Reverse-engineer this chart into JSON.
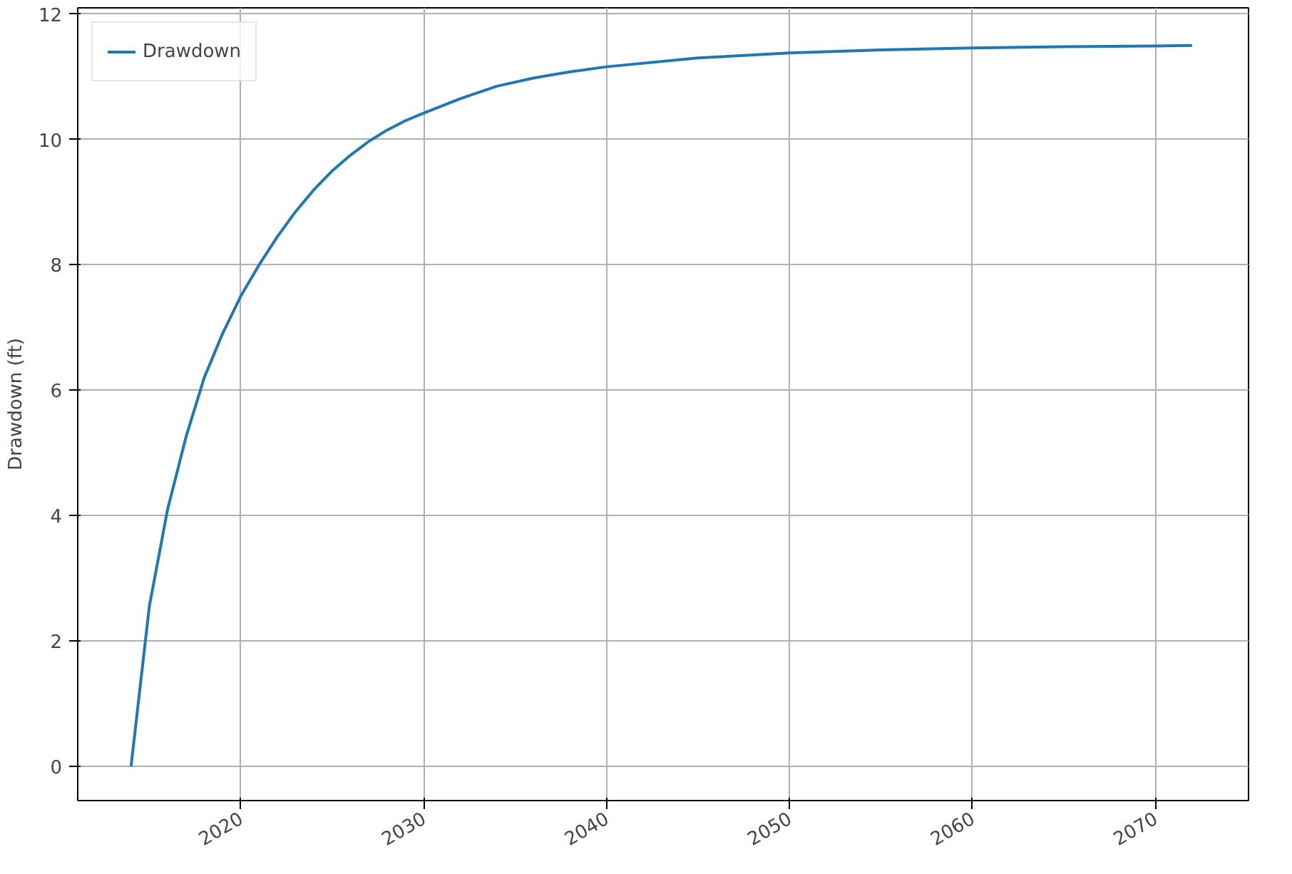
{
  "chart_data": {
    "type": "line",
    "ylabel": "Drawdown (ft)",
    "x": [
      "2014",
      "2015",
      "2016",
      "2017",
      "2018",
      "2019",
      "2020",
      "2021",
      "2022",
      "2023",
      "2024",
      "2025",
      "2026",
      "2027",
      "2028",
      "2029",
      "2030",
      "2032",
      "2034",
      "2036",
      "2038",
      "2040",
      "2045",
      "2050",
      "2055",
      "2060",
      "2065",
      "2070",
      "2072"
    ],
    "series": [
      {
        "name": "Drawdown",
        "color": "#1f77b4",
        "values": [
          0,
          2.55,
          4.1,
          5.25,
          6.2,
          6.9,
          7.5,
          8.0,
          8.45,
          8.85,
          9.2,
          9.5,
          9.75,
          9.97,
          10.15,
          10.3,
          10.42,
          10.65,
          10.85,
          10.98,
          11.08,
          11.16,
          11.3,
          11.38,
          11.43,
          11.46,
          11.48,
          11.49,
          11.5
        ]
      }
    ],
    "xlim": [
      "2011-02",
      "2075-02"
    ],
    "xticks": [
      "2020",
      "2030",
      "2040",
      "2050",
      "2060",
      "2070"
    ],
    "ylim": [
      -0.55,
      12.1
    ],
    "yticks": [
      0,
      2,
      4,
      6,
      8,
      10,
      12
    ],
    "grid": true,
    "legend": "top left"
  }
}
